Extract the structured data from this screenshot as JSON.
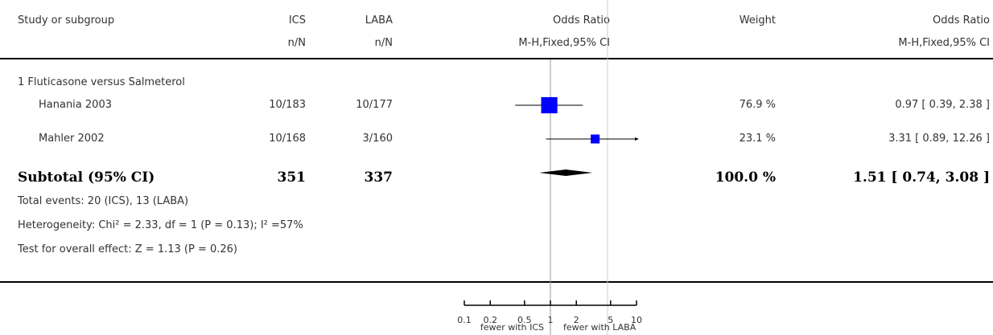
{
  "header": {
    "col_study": "Study or subgroup",
    "col_ics": "ICS",
    "col_ics_sub": "n/N",
    "col_laba": "LABA",
    "col_laba_sub": "n/N",
    "col_or_plot": "Odds Ratio",
    "col_or_plot_sub": "M-H,Fixed,95% CI",
    "col_weight": "Weight",
    "col_or": "Odds Ratio",
    "col_or_sub": "M-H,Fixed,95% CI"
  },
  "group": {
    "title": "1 Fluticasone versus Salmeterol"
  },
  "studies": [
    {
      "name": "Hanania 2003",
      "ics": "10/183",
      "laba": "10/177",
      "weight": "76.9 %",
      "or_text": "0.97 [ 0.39, 2.38 ]"
    },
    {
      "name": "Mahler 2002",
      "ics": "10/168",
      "laba": "3/160",
      "weight": "23.1 %",
      "or_text": "3.31 [ 0.89, 12.26 ]"
    }
  ],
  "subtotal": {
    "label": "Subtotal (95% CI)",
    "ics": "351",
    "laba": "337",
    "weight": "100.0 %",
    "or_text": "1.51 [ 0.74, 3.08 ]"
  },
  "notes": {
    "events": "Total events: 20 (ICS), 13 (LABA)",
    "heterogeneity": "Heterogeneity: Chi² = 2.33, df = 1 (P = 0.13); I² =57%",
    "overall": "Test for overall effect: Z = 1.13 (P = 0.26)"
  },
  "axis": {
    "favours_left": "fewer with ICS",
    "favours_right": "fewer with LABA"
  },
  "colors": {
    "study_marker": "#0000ff",
    "diamond": "#000000",
    "line": "#000000",
    "reference_line": "#999999",
    "grey_divider": "#cccccc"
  },
  "chart_data": {
    "type": "forest",
    "scale": "log",
    "xlim": [
      0.1,
      10
    ],
    "ticks": [
      0.1,
      0.2,
      0.5,
      1,
      2,
      5,
      10
    ],
    "tick_labels": [
      "0.1",
      "0.2",
      "0.5",
      "1",
      "2",
      "5",
      "10"
    ],
    "null_value": 1,
    "studies": [
      {
        "name": "Hanania 2003",
        "or": 0.97,
        "lower": 0.39,
        "upper": 2.38,
        "weight": 76.9
      },
      {
        "name": "Mahler 2002",
        "or": 3.31,
        "lower": 0.89,
        "upper": 12.26,
        "weight": 23.1
      }
    ],
    "subtotal": {
      "name": "Subtotal (95% CI)",
      "or": 1.51,
      "lower": 0.74,
      "upper": 3.08
    }
  }
}
